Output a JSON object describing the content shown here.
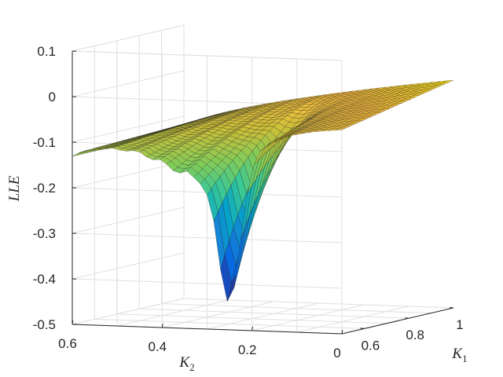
{
  "chart_data": {
    "type": "surface",
    "title": "",
    "xlabel": "K_1",
    "ylabel": "K_2",
    "zlabel": "LLE",
    "xlim": [
      0.5,
      1.0
    ],
    "ylim": [
      0,
      0.6
    ],
    "zlim": [
      -0.5,
      0.1
    ],
    "x_ticks": [
      "0.6",
      "0.8",
      "1"
    ],
    "y_ticks": [
      "0.6",
      "0.4",
      "0.2",
      "0"
    ],
    "z_ticks": [
      "0.1",
      "0",
      "-0.1",
      "-0.2",
      "-0.3",
      "-0.4",
      "-0.5"
    ],
    "colormap": "parula",
    "grid": true,
    "profile_near_K1_0.5": {
      "K2": [
        0.6,
        0.55,
        0.5,
        0.45,
        0.4,
        0.35,
        0.3,
        0.28,
        0.26,
        0.25,
        0.24,
        0.2,
        0.15,
        0.1,
        0.05,
        0.0
      ],
      "LLE": [
        -0.13,
        -0.12,
        -0.12,
        -0.13,
        -0.15,
        -0.19,
        -0.24,
        -0.3,
        -0.38,
        -0.42,
        -0.33,
        -0.16,
        -0.06,
        -0.02,
        0.0,
        0.0
      ]
    }
  }
}
